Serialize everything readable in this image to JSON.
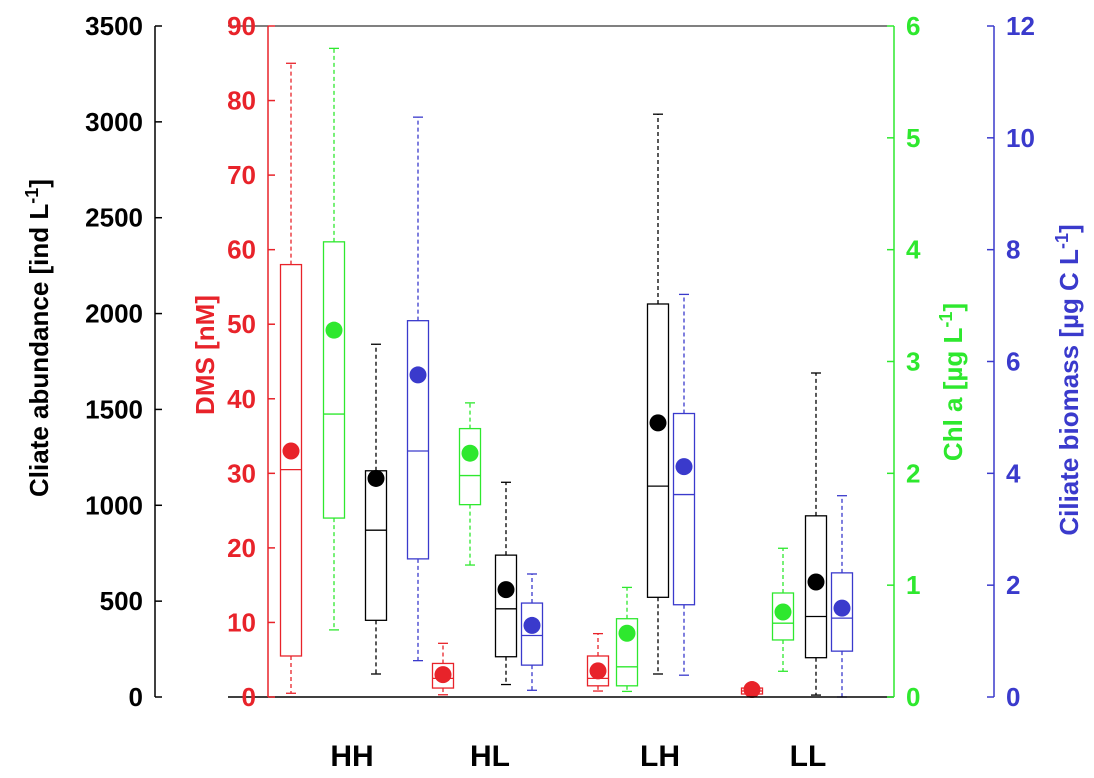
{
  "chart_data": {
    "type": "box",
    "categories": [
      "HH",
      "HL",
      "LH",
      "LL"
    ],
    "axes": {
      "abundance": {
        "label": "Cliate abundance [ind L",
        "label_sup": "-1",
        "label_end": "]",
        "color": "#000000",
        "ylim": [
          0,
          3500
        ],
        "ticks": [
          "0",
          "500",
          "1000",
          "1500",
          "2000",
          "2500",
          "3000",
          "3500"
        ],
        "tick_values": [
          0,
          500,
          1000,
          1500,
          2000,
          2500,
          3000,
          3500
        ]
      },
      "dms": {
        "label": "DMS [nM]",
        "color": "#e8232a",
        "ylim": [
          0,
          90
        ],
        "ticks": [
          "0",
          "10",
          "20",
          "30",
          "40",
          "50",
          "60",
          "70",
          "80",
          "90"
        ],
        "tick_values": [
          0,
          10,
          20,
          30,
          40,
          50,
          60,
          70,
          80,
          90
        ]
      },
      "chla": {
        "label": "Chl a [µg L",
        "label_sup": "-1",
        "label_end": "]",
        "color": "#2ee82e",
        "ylim": [
          0,
          6
        ],
        "ticks": [
          "0",
          "1",
          "2",
          "3",
          "4",
          "5",
          "6"
        ],
        "tick_values": [
          0,
          1,
          2,
          3,
          4,
          5,
          6
        ]
      },
      "biomass": {
        "label": "Ciliate biomass [µg C L",
        "label_sup": "-1",
        "label_end": "]",
        "color": "#3a3acc",
        "ylim": [
          0,
          12
        ],
        "ticks": [
          "0",
          "2",
          "4",
          "6",
          "8",
          "10",
          "12"
        ],
        "tick_values": [
          0,
          2,
          4,
          6,
          8,
          10,
          12
        ]
      }
    },
    "series": [
      {
        "axis": "dms",
        "color": "#e8232a",
        "boxes": [
          {
            "category": "HH",
            "min": 0.5,
            "q1": 5.5,
            "median": 30.5,
            "q3": 58,
            "max": 85,
            "mean": 33
          },
          {
            "category": "HL",
            "min": 0.3,
            "q1": 1.2,
            "median": 2.5,
            "q3": 4.5,
            "max": 7.2,
            "mean": 3
          },
          {
            "category": "LH",
            "min": 0.8,
            "q1": 1.5,
            "median": 2.5,
            "q3": 5.5,
            "max": 8.5,
            "mean": 3.5
          },
          {
            "category": "LL",
            "min": 0.1,
            "q1": 0.4,
            "median": 0.8,
            "q3": 1.2,
            "max": 1.5,
            "mean": 1
          }
        ]
      },
      {
        "axis": "chla",
        "color": "#2ee82e",
        "boxes": [
          {
            "category": "HH",
            "min": 0.6,
            "q1": 1.6,
            "median": 2.53,
            "q3": 4.07,
            "max": 5.8,
            "mean": 3.28
          },
          {
            "category": "HL",
            "min": 1.18,
            "q1": 1.72,
            "median": 1.98,
            "q3": 2.4,
            "max": 2.63,
            "mean": 2.18
          },
          {
            "category": "LH",
            "min": 0.05,
            "q1": 0.1,
            "median": 0.27,
            "q3": 0.7,
            "max": 0.98,
            "mean": 0.57
          },
          {
            "category": "LL",
            "min": 0.23,
            "q1": 0.51,
            "median": 0.66,
            "q3": 0.93,
            "max": 1.33,
            "mean": 0.76
          }
        ]
      },
      {
        "axis": "abundance",
        "color": "#000000",
        "boxes": [
          {
            "category": "HH",
            "min": 120,
            "q1": 400,
            "median": 870,
            "q3": 1180,
            "max": 1840,
            "mean": 1140
          },
          {
            "category": "HL",
            "min": 65,
            "q1": 210,
            "median": 460,
            "q3": 740,
            "max": 1120,
            "mean": 560
          },
          {
            "category": "LH",
            "min": 120,
            "q1": 520,
            "median": 1100,
            "q3": 2050,
            "max": 3040,
            "mean": 1430
          },
          {
            "category": "LL",
            "min": 10,
            "q1": 205,
            "median": 420,
            "q3": 945,
            "max": 1690,
            "mean": 600
          }
        ]
      },
      {
        "axis": "biomass",
        "color": "#3a3acc",
        "boxes": [
          {
            "category": "HH",
            "min": 0.65,
            "q1": 2.47,
            "median": 4.4,
            "q3": 6.73,
            "max": 10.37,
            "mean": 5.76
          },
          {
            "category": "HL",
            "min": 0.12,
            "q1": 0.57,
            "median": 1.1,
            "q3": 1.68,
            "max": 2.2,
            "mean": 1.28
          },
          {
            "category": "LH",
            "min": 0.39,
            "q1": 1.65,
            "median": 3.62,
            "q3": 5.07,
            "max": 7.2,
            "mean": 4.12
          },
          {
            "category": "LL",
            "min": 0,
            "q1": 0.82,
            "median": 1.41,
            "q3": 2.22,
            "max": 3.6,
            "mean": 1.59
          }
        ]
      }
    ]
  }
}
